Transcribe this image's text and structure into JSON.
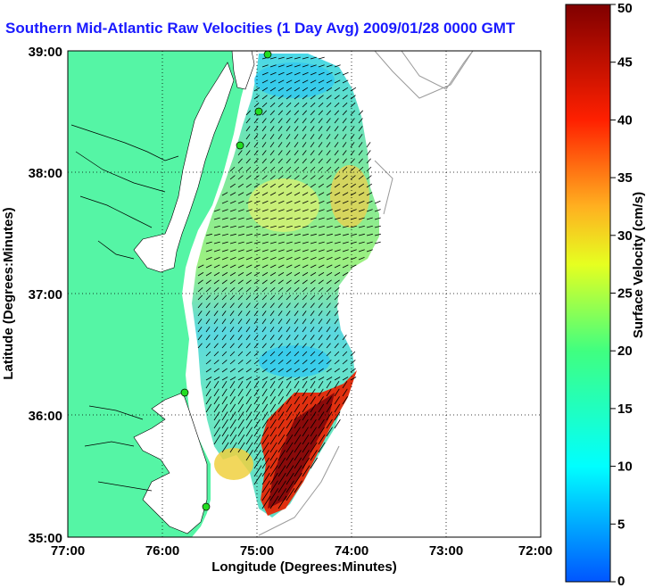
{
  "title": "Southern Mid-Atlantic Raw Velocities (1 Day Avg) 2009/01/28 0000 GMT",
  "axes": {
    "xlabel": "Longitude (Degrees:Minutes)",
    "ylabel": "Latitude (Degrees:Minutes)",
    "x_ticks": [
      "77:00",
      "76:00",
      "75:00",
      "74:00",
      "73:00",
      "72:00"
    ],
    "y_ticks": [
      "39:00",
      "38:00",
      "37:00",
      "36:00",
      "35:00"
    ]
  },
  "colorbar": {
    "label": "Surface Velocity (cm/s)",
    "ticks": [
      "0",
      "5",
      "10",
      "15",
      "20",
      "25",
      "30",
      "35",
      "40",
      "45",
      "50"
    ],
    "min": 0,
    "max": 50
  },
  "colors": {
    "land": "#55f5a5",
    "title": "#1a1aff",
    "water": "#ffffff",
    "station": "#22dd22"
  }
}
